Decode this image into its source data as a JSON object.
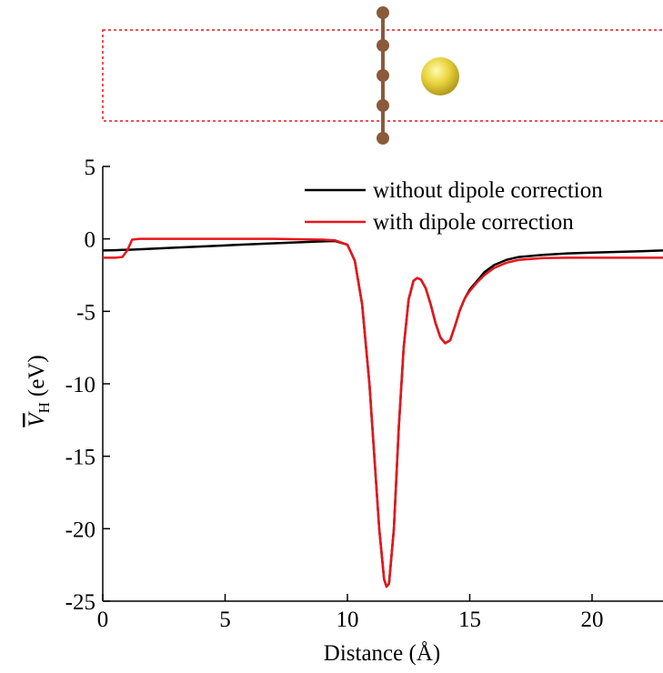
{
  "chart_data": {
    "type": "line",
    "xlabel": "Distance (Å)",
    "ylabel": {
      "symbol": "V",
      "subscript": "H",
      "unit": "(eV)"
    },
    "xlim": [
      0,
      22.9
    ],
    "ylim": [
      -25,
      5
    ],
    "xticks": [
      0,
      5,
      10,
      15,
      20
    ],
    "yticks": [
      5,
      0,
      -5,
      -10,
      -15,
      -20,
      -25
    ],
    "legend": "upper right",
    "x": [
      0,
      0.5,
      0.8,
      1.0,
      1.2,
      1.5,
      3,
      5,
      7,
      9,
      9.5,
      10,
      10.3,
      10.6,
      10.9,
      11.1,
      11.3,
      11.5,
      11.6,
      11.7,
      11.9,
      12.1,
      12.3,
      12.5,
      12.7,
      12.85,
      13.0,
      13.2,
      13.4,
      13.6,
      13.8,
      14.0,
      14.2,
      14.4,
      14.6,
      14.8,
      15.0,
      15.3,
      15.6,
      16,
      16.5,
      17,
      18,
      19,
      20,
      21,
      22,
      22.9
    ],
    "series": [
      {
        "name": "without dipole correction",
        "color": "#000000",
        "values": [
          -0.8,
          -0.78,
          -0.76,
          -0.75,
          -0.74,
          -0.72,
          -0.6,
          -0.45,
          -0.3,
          -0.17,
          -0.15,
          -0.4,
          -1.5,
          -4.5,
          -10,
          -15,
          -20,
          -23.5,
          -24,
          -23.8,
          -20,
          -13,
          -7.5,
          -4.2,
          -2.9,
          -2.7,
          -2.8,
          -3.4,
          -4.5,
          -5.8,
          -6.8,
          -7.2,
          -7.0,
          -6.0,
          -4.9,
          -4.1,
          -3.5,
          -2.9,
          -2.3,
          -1.8,
          -1.45,
          -1.25,
          -1.1,
          -1.0,
          -0.95,
          -0.9,
          -0.85,
          -0.8
        ]
      },
      {
        "name": "with dipole correction",
        "color": "#e8151b",
        "values": [
          -1.3,
          -1.3,
          -1.25,
          -0.8,
          -0.05,
          0,
          0,
          0,
          0,
          -0.05,
          -0.1,
          -0.4,
          -1.5,
          -4.5,
          -10,
          -15,
          -20,
          -23.5,
          -24,
          -23.8,
          -20,
          -13,
          -7.5,
          -4.2,
          -2.9,
          -2.7,
          -2.8,
          -3.4,
          -4.5,
          -5.8,
          -6.8,
          -7.2,
          -7.0,
          -6.0,
          -4.9,
          -4.1,
          -3.6,
          -3.0,
          -2.5,
          -2.0,
          -1.65,
          -1.45,
          -1.32,
          -1.3,
          -1.3,
          -1.3,
          -1.3,
          -1.3
        ]
      }
    ]
  }
}
